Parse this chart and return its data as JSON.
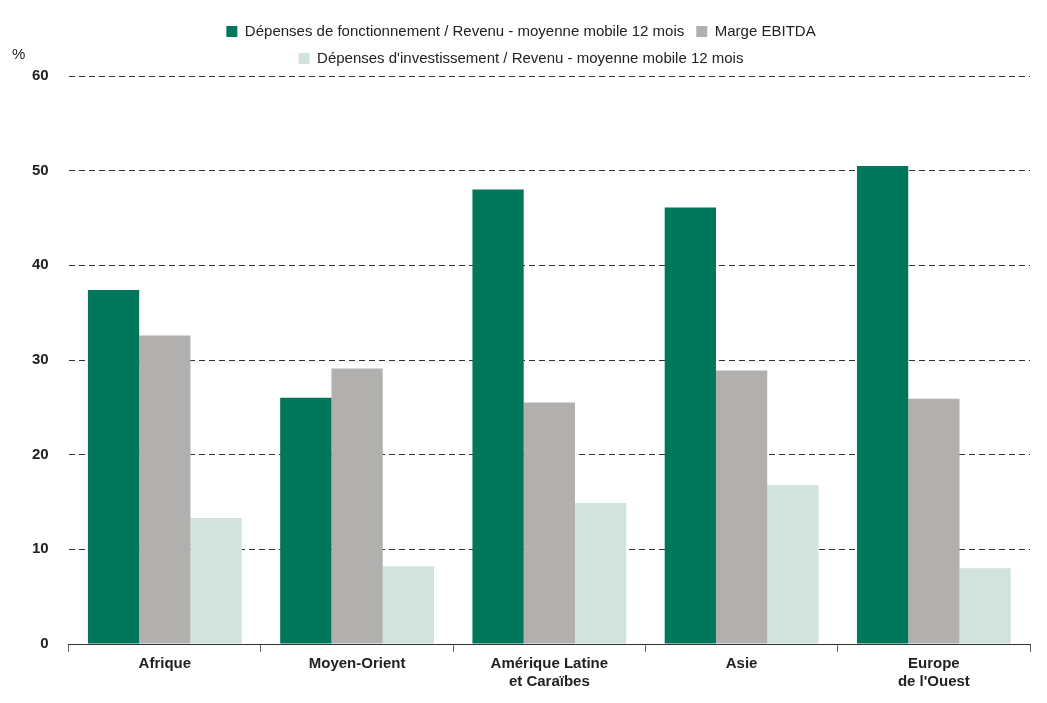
{
  "chart_data": {
    "type": "bar",
    "ylabel": "%",
    "categories": [
      "Afrique",
      "Moyen-Orient",
      "Amérique Latine\net Caraïbes",
      "Asie",
      "Europe\nde l'Ouest"
    ],
    "series": [
      {
        "name": "Dépenses de fonctionnement / Revenu - moyenne mobile 12 mois",
        "color": "#00775a",
        "values": [
          37.4,
          26.0,
          48.0,
          46.1,
          50.5
        ]
      },
      {
        "name": "Marge EBITDA",
        "color": "#b1b0af",
        "values": [
          32.6,
          29.1,
          25.5,
          28.9,
          25.9
        ]
      },
      {
        "name": "Dépenses d'investissement / Revenu - moyenne mobile 12 mois",
        "color": "#d1e3dc",
        "values": [
          13.3,
          8.2,
          14.9,
          16.8,
          8.0
        ]
      }
    ],
    "ylim": [
      0,
      60
    ],
    "yticks": [
      0,
      10,
      20,
      30,
      40,
      50,
      60
    ],
    "grid": "y",
    "legend": "top"
  }
}
